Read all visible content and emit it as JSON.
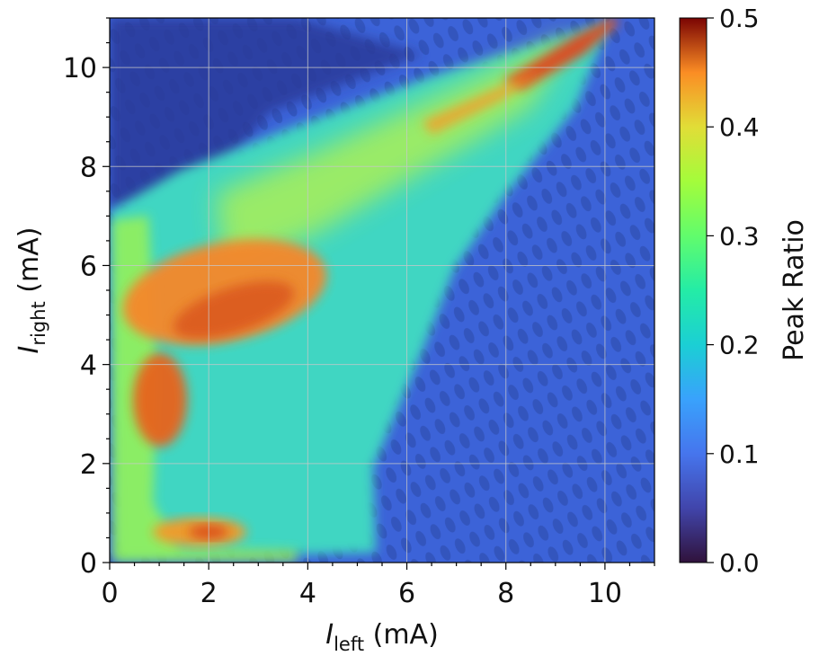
{
  "chart_data": {
    "type": "heatmap",
    "title": "",
    "xlabel": {
      "symbol": "I",
      "subscript": "left",
      "unit": "(mA)"
    },
    "ylabel": {
      "symbol": "I",
      "subscript": "right",
      "unit": "(mA)"
    },
    "xlim": [
      0,
      11
    ],
    "ylim": [
      0,
      11
    ],
    "xticks": [
      0,
      2,
      4,
      6,
      8,
      10
    ],
    "yticks": [
      0,
      2,
      4,
      6,
      8,
      10
    ],
    "grid": true,
    "colormap": "turbo",
    "colorbar": {
      "label": "Peak Ratio",
      "range": [
        0.0,
        0.5
      ],
      "ticks": [
        "0.0",
        "0.1",
        "0.2",
        "0.3",
        "0.4",
        "0.5"
      ]
    },
    "regions": [
      {
        "feature": "background low ratio",
        "value": 0.05
      },
      {
        "feature": "diagonal wedge band",
        "value": [
          0.15,
          0.3
        ]
      },
      {
        "feature": "orange lobe near (2.5, 5.2)",
        "value": 0.42
      },
      {
        "feature": "orange lobe near (1.2, 3.2)",
        "value": 0.43
      },
      {
        "feature": "orange spot near (2.0, 0.7)",
        "value": 0.42
      },
      {
        "feature": "red tip near (9.8, 10.8)",
        "value": 0.46
      }
    ]
  }
}
